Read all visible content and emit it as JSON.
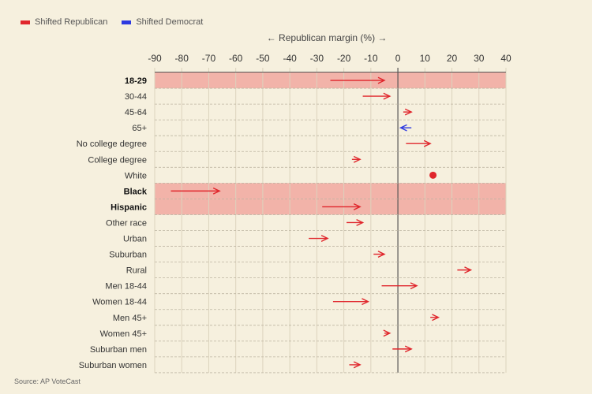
{
  "legend": {
    "republican": {
      "label": "Shifted Republican",
      "color": "#e0262c"
    },
    "democrat": {
      "label": "Shifted Democrat",
      "color": "#2e3ae0"
    }
  },
  "source": "Source: AP VoteCast",
  "chart_data": {
    "type": "arrow",
    "title": "",
    "xlabel": "Republican margin (%)",
    "xlabel_arrows": [
      "←",
      "→"
    ],
    "xlim": [
      -90,
      40
    ],
    "xticks": [
      -90,
      -80,
      -70,
      -60,
      -50,
      -40,
      -30,
      -20,
      -10,
      0,
      10,
      20,
      30,
      40
    ],
    "grid": true,
    "legend_position": "top-left",
    "colors": {
      "republican": "#e0262c",
      "democrat": "#2e3ae0",
      "highlight": "#f2b3a9"
    },
    "rows": [
      {
        "label": "18-29",
        "from": -25,
        "to": -5,
        "bold": true,
        "highlight": true,
        "shift": "republican"
      },
      {
        "label": "30-44",
        "from": -13,
        "to": -3,
        "shift": "republican"
      },
      {
        "label": "45-64",
        "from": 2,
        "to": 5,
        "shift": "republican"
      },
      {
        "label": "65+",
        "from": 5,
        "to": 1,
        "shift": "democrat"
      },
      {
        "label": "No college degree",
        "from": 3,
        "to": 12,
        "shift": "republican"
      },
      {
        "label": "College degree",
        "from": -17,
        "to": -14,
        "shift": "republican"
      },
      {
        "label": "White",
        "from": 13,
        "to": 13,
        "shift": "none"
      },
      {
        "label": "Black",
        "from": -84,
        "to": -66,
        "bold": true,
        "highlight": true,
        "shift": "republican"
      },
      {
        "label": "Hispanic",
        "from": -28,
        "to": -14,
        "bold": true,
        "highlight": true,
        "shift": "republican"
      },
      {
        "label": "Other race",
        "from": -19,
        "to": -13,
        "shift": "republican"
      },
      {
        "label": "Urban",
        "from": -33,
        "to": -26,
        "shift": "republican"
      },
      {
        "label": "Suburban",
        "from": -9,
        "to": -5,
        "shift": "republican"
      },
      {
        "label": "Rural",
        "from": 22,
        "to": 27,
        "shift": "republican"
      },
      {
        "label": "Men 18-44",
        "from": -6,
        "to": 7,
        "shift": "republican"
      },
      {
        "label": "Women 18-44",
        "from": -24,
        "to": -11,
        "shift": "republican"
      },
      {
        "label": "Men 45+",
        "from": 12,
        "to": 15,
        "shift": "republican"
      },
      {
        "label": "Women 45+",
        "from": -5,
        "to": -3,
        "shift": "republican"
      },
      {
        "label": "Suburban men",
        "from": -2,
        "to": 5,
        "shift": "republican"
      },
      {
        "label": "Suburban women",
        "from": -18,
        "to": -14,
        "shift": "republican"
      }
    ]
  }
}
